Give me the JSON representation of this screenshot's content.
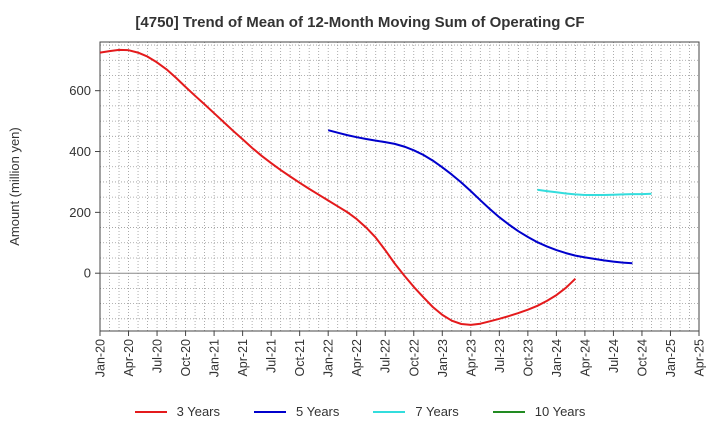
{
  "chart_data": {
    "type": "line",
    "title": "[4750]  Trend of Mean of 12-Month Moving Sum of Operating CF",
    "ylabel": "Amount (million yen)",
    "xlabel": "",
    "ylim": [
      -190,
      760
    ],
    "yticks": [
      0,
      200,
      400,
      600
    ],
    "xticks": [
      "Jan-20",
      "Apr-20",
      "Jul-20",
      "Oct-20",
      "Jan-21",
      "Apr-21",
      "Jul-21",
      "Oct-21",
      "Jan-22",
      "Apr-22",
      "Jul-22",
      "Oct-22",
      "Jan-23",
      "Apr-23",
      "Jul-23",
      "Oct-23",
      "Jan-24",
      "Apr-24",
      "Jul-24",
      "Oct-24",
      "Jan-25",
      "Apr-25"
    ],
    "series": [
      {
        "name": "3 Years",
        "color": "#e41a1c",
        "points": [
          [
            0,
            725
          ],
          [
            1,
            730
          ],
          [
            2,
            734
          ],
          [
            3,
            733
          ],
          [
            4,
            725
          ],
          [
            5,
            712
          ],
          [
            6,
            693
          ],
          [
            7,
            670
          ],
          [
            8,
            642
          ],
          [
            9,
            612
          ],
          [
            10,
            583
          ],
          [
            11,
            555
          ],
          [
            12,
            526
          ],
          [
            13,
            497
          ],
          [
            14,
            468
          ],
          [
            15,
            440
          ],
          [
            16,
            412
          ],
          [
            17,
            386
          ],
          [
            18,
            362
          ],
          [
            19,
            339
          ],
          [
            20,
            318
          ],
          [
            21,
            297
          ],
          [
            22,
            277
          ],
          [
            23,
            258
          ],
          [
            24,
            239
          ],
          [
            25,
            220
          ],
          [
            26,
            201
          ],
          [
            27,
            178
          ],
          [
            28,
            150
          ],
          [
            29,
            117
          ],
          [
            30,
            76
          ],
          [
            31,
            32
          ],
          [
            32,
            -8
          ],
          [
            33,
            -45
          ],
          [
            34,
            -79
          ],
          [
            35,
            -111
          ],
          [
            36,
            -137
          ],
          [
            37,
            -156
          ],
          [
            38,
            -167
          ],
          [
            39,
            -170
          ],
          [
            40,
            -166
          ],
          [
            41,
            -158
          ],
          [
            42,
            -150
          ],
          [
            43,
            -141
          ],
          [
            44,
            -131
          ],
          [
            45,
            -120
          ],
          [
            46,
            -107
          ],
          [
            47,
            -91
          ],
          [
            48,
            -72
          ],
          [
            49,
            -48
          ],
          [
            50,
            -18
          ]
        ]
      },
      {
        "name": "5 Years",
        "color": "#0000cc",
        "points": [
          [
            24,
            470
          ],
          [
            25,
            462
          ],
          [
            26,
            454
          ],
          [
            27,
            447
          ],
          [
            28,
            441
          ],
          [
            29,
            436
          ],
          [
            30,
            431
          ],
          [
            31,
            425
          ],
          [
            32,
            416
          ],
          [
            33,
            404
          ],
          [
            34,
            389
          ],
          [
            35,
            370
          ],
          [
            36,
            348
          ],
          [
            37,
            324
          ],
          [
            38,
            298
          ],
          [
            39,
            270
          ],
          [
            40,
            240
          ],
          [
            41,
            211
          ],
          [
            42,
            184
          ],
          [
            43,
            160
          ],
          [
            44,
            138
          ],
          [
            45,
            119
          ],
          [
            46,
            102
          ],
          [
            47,
            88
          ],
          [
            48,
            76
          ],
          [
            49,
            66
          ],
          [
            50,
            58
          ],
          [
            51,
            52
          ],
          [
            52,
            47
          ],
          [
            53,
            42
          ],
          [
            54,
            38
          ],
          [
            55,
            35
          ],
          [
            56,
            33
          ]
        ]
      },
      {
        "name": "7 Years",
        "color": "#33dddd",
        "points": [
          [
            46,
            274
          ],
          [
            47,
            270
          ],
          [
            48,
            266
          ],
          [
            49,
            262
          ],
          [
            50,
            259
          ],
          [
            51,
            257
          ],
          [
            52,
            257
          ],
          [
            53,
            257
          ],
          [
            54,
            258
          ],
          [
            55,
            259
          ],
          [
            56,
            260
          ],
          [
            57,
            260
          ],
          [
            58,
            261
          ]
        ]
      },
      {
        "name": "10 Years",
        "color": "#228b22",
        "points": []
      }
    ]
  }
}
